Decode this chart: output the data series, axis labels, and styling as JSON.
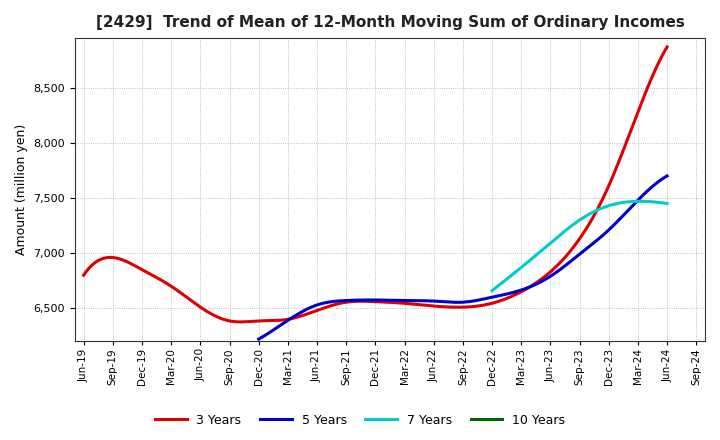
{
  "title": "[2429]  Trend of Mean of 12-Month Moving Sum of Ordinary Incomes",
  "ylabel": "Amount (million yen)",
  "ylim": [
    6200,
    8950
  ],
  "yticks": [
    6500,
    7000,
    7500,
    8000,
    8500
  ],
  "background_color": "#ffffff",
  "grid_color": "#aaaaaa",
  "xtick_labels": [
    "Jun-19",
    "Sep-19",
    "Dec-19",
    "Mar-20",
    "Jun-20",
    "Sep-20",
    "Dec-20",
    "Mar-21",
    "Jun-21",
    "Sep-21",
    "Dec-21",
    "Mar-22",
    "Jun-22",
    "Sep-22",
    "Dec-22",
    "Mar-23",
    "Jun-23",
    "Sep-23",
    "Dec-23",
    "Mar-24",
    "Jun-24",
    "Sep-24"
  ],
  "series_3y_color": "#dd0000",
  "series_3y_x": [
    0,
    1,
    2,
    3,
    4,
    5,
    6,
    7,
    8,
    9,
    10,
    11,
    12,
    13,
    14,
    15,
    16,
    17,
    18,
    19,
    20
  ],
  "series_3y_y": [
    6800,
    6960,
    6850,
    6700,
    6510,
    6385,
    6385,
    6400,
    6480,
    6555,
    6560,
    6545,
    6520,
    6510,
    6545,
    6650,
    6830,
    7130,
    7610,
    8280,
    8870
  ],
  "series_5y_color": "#0000cc",
  "series_5y_x": [
    6,
    7,
    8,
    9,
    10,
    11,
    12,
    13,
    14,
    15,
    16,
    17,
    18,
    19,
    20
  ],
  "series_5y_y": [
    6220,
    6390,
    6530,
    6570,
    6575,
    6570,
    6565,
    6555,
    6600,
    6665,
    6790,
    6990,
    7210,
    7480,
    7700
  ],
  "series_7y_color": "#00cccc",
  "series_7y_x": [
    14,
    15,
    16,
    17,
    18,
    19,
    20
  ],
  "series_7y_y": [
    6660,
    6870,
    7090,
    7300,
    7430,
    7470,
    7450
  ],
  "series_10y_color": "#006600",
  "legend_labels": [
    "3 Years",
    "5 Years",
    "7 Years",
    "10 Years"
  ],
  "legend_colors": [
    "#dd0000",
    "#0000cc",
    "#00cccc",
    "#006600"
  ]
}
